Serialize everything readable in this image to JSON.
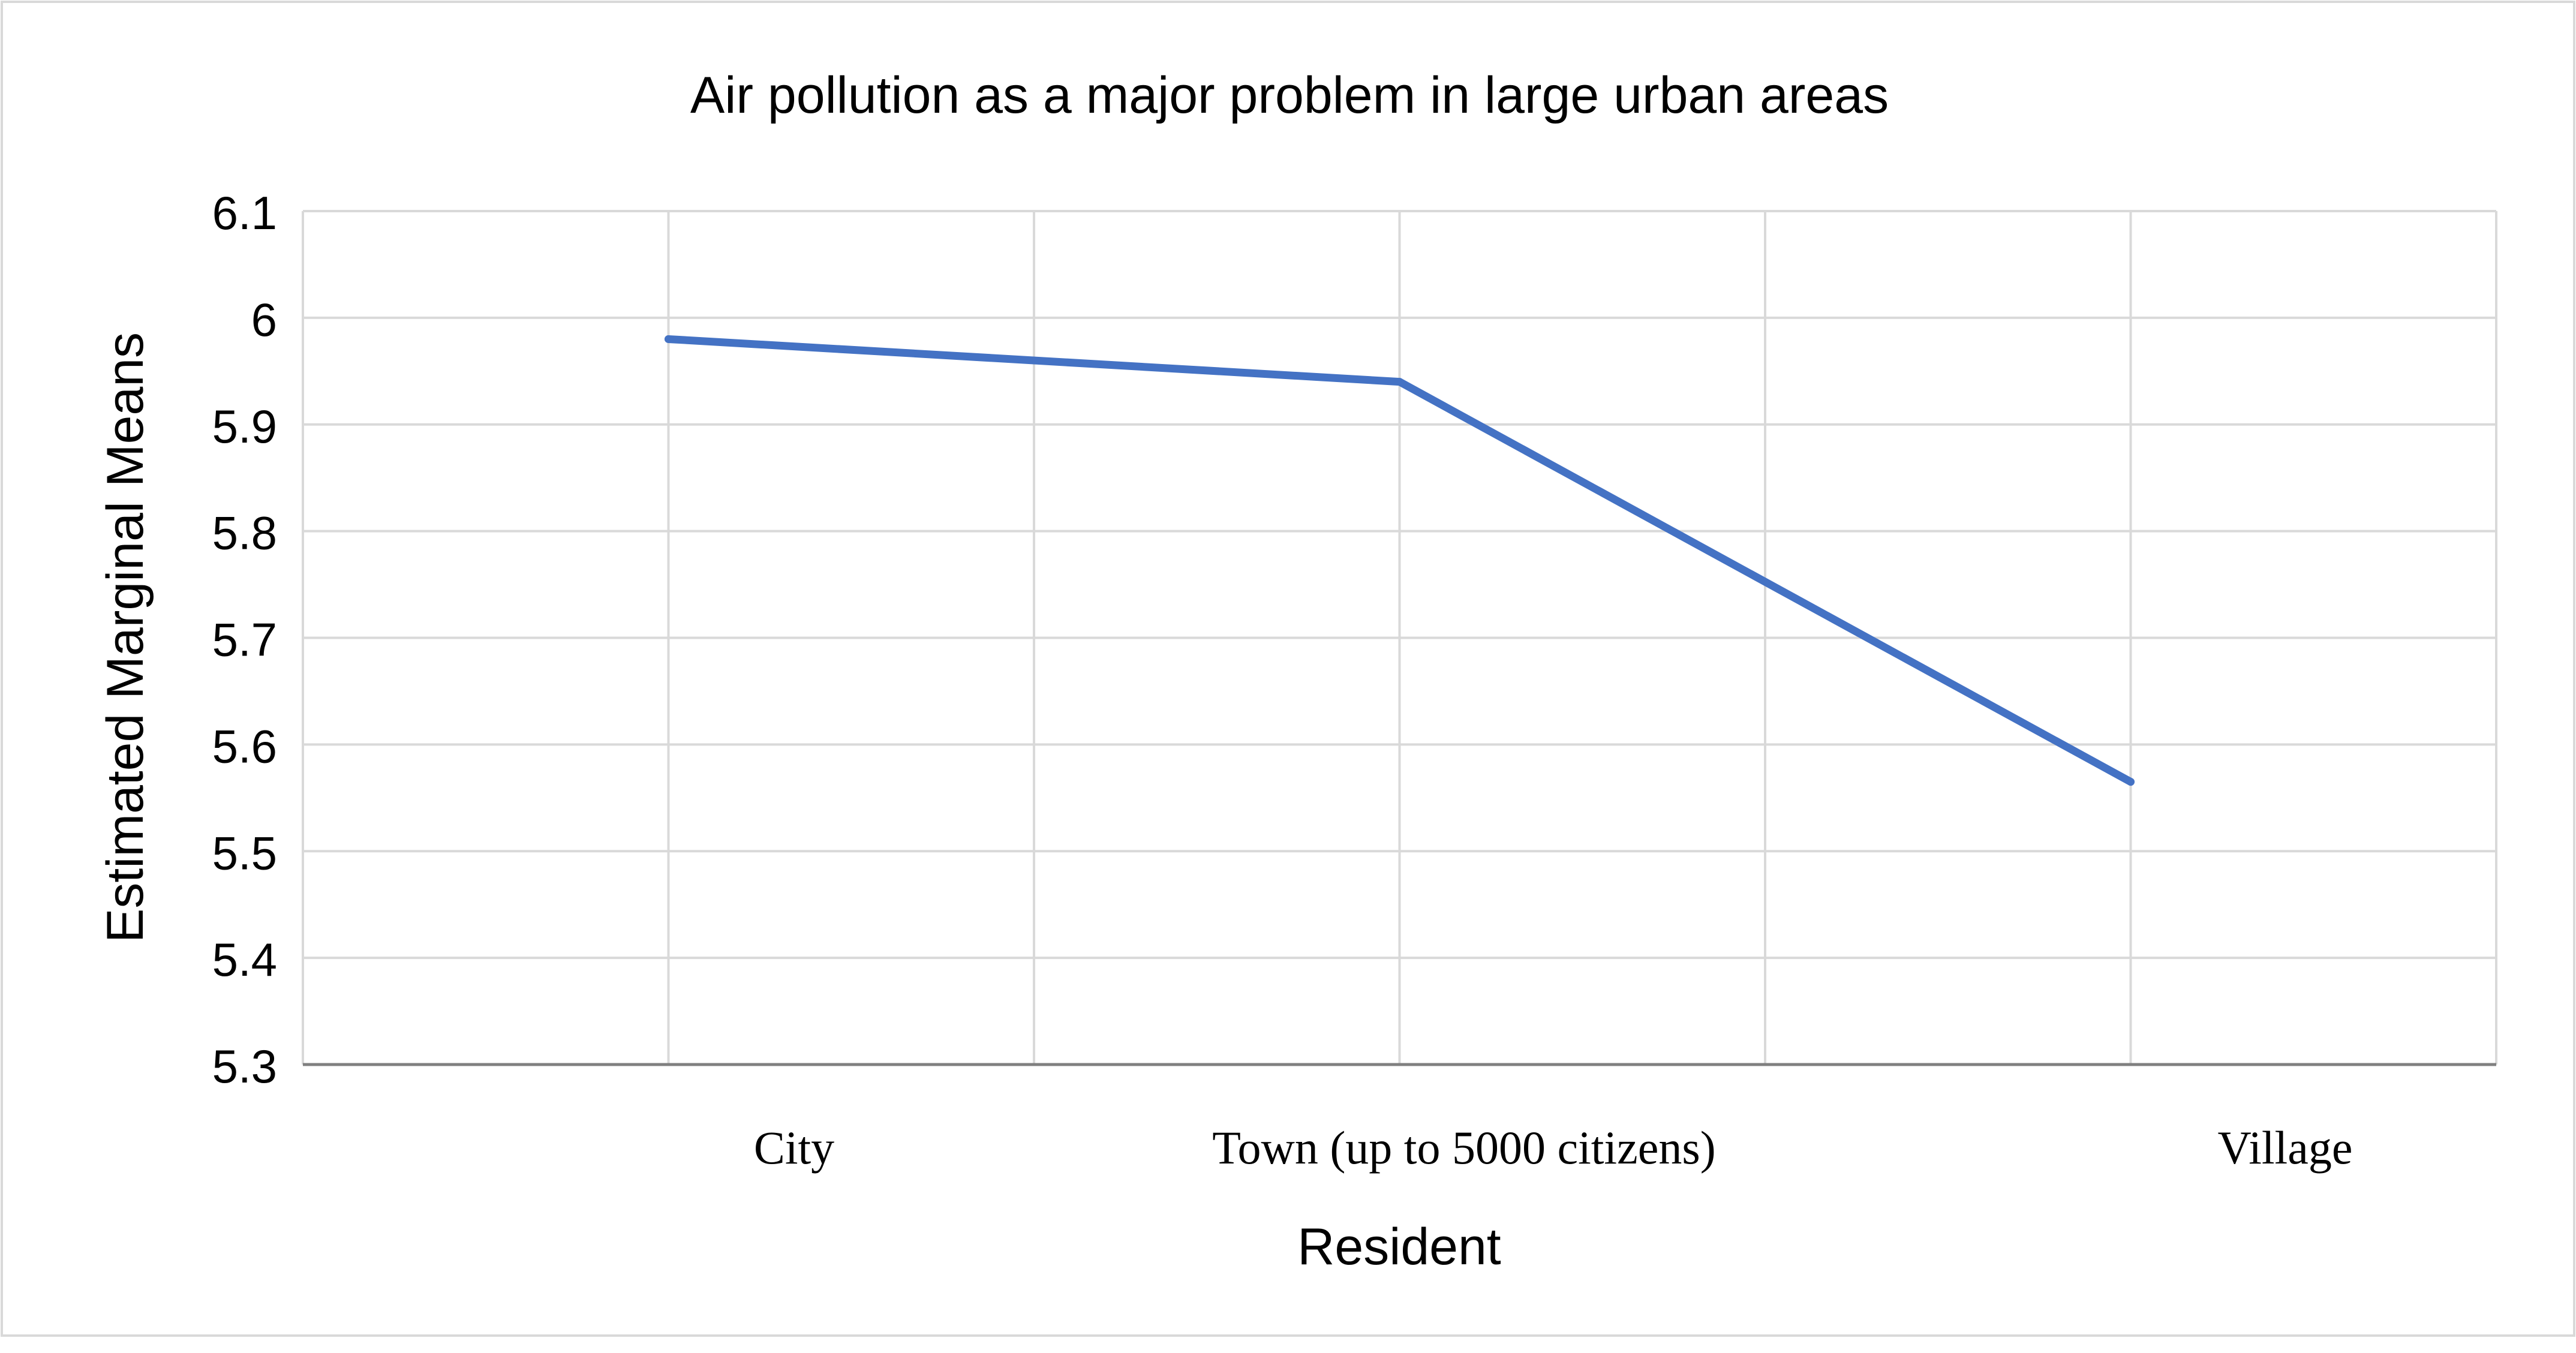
{
  "chart_data": {
    "type": "line",
    "title": "Air pollution as a major problem in large urban areas",
    "xlabel": "Resident",
    "ylabel": "Estimated Marginal Means",
    "categories": [
      "City",
      "Town (up to 5000 citizens)",
      "Village"
    ],
    "series": [
      {
        "name": "Estimated Marginal Means",
        "values": [
          5.98,
          5.94,
          5.565
        ]
      }
    ],
    "ylim": [
      5.3,
      6.1
    ],
    "yticks": [
      "5.3",
      "5.4",
      "5.5",
      "5.6",
      "5.7",
      "5.8",
      "5.9",
      "6",
      "6.1"
    ],
    "grid": true,
    "legend": "none"
  },
  "colors": {
    "line": "#4472C4",
    "grid": "#D9D9D9",
    "axis": "#808080",
    "text": "#000000",
    "border": "#D9D9D9"
  }
}
